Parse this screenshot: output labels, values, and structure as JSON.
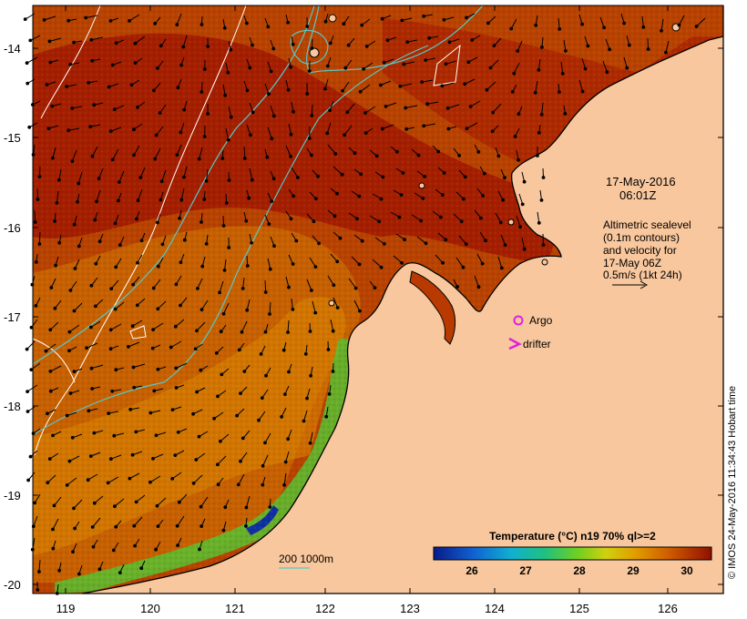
{
  "map": {
    "lat_ticks": [
      "-14",
      "-15",
      "-16",
      "-17",
      "-18",
      "-19",
      "-20"
    ],
    "lon_ticks": [
      "119",
      "120",
      "121",
      "122",
      "123",
      "124",
      "125",
      "126"
    ],
    "lon_range": [
      118.6,
      126.7
    ],
    "lat_range": [
      -13.6,
      -20.1
    ],
    "colors": {
      "land": "#f8c79d",
      "sst_warm": "#b83a00",
      "sst_hot": "#a01800",
      "sst_mid": "#d07800",
      "sst_cool": "#40c040",
      "contour": "#58c8c8",
      "isobath": "#ffffff",
      "coast": "#000000",
      "argo": "#e020e0"
    }
  },
  "annotation": {
    "date": "17-May-2016",
    "time": "06:01Z",
    "legend_lines": [
      "Altimetric sealevel",
      "(0.1m contours)",
      "and velocity for",
      "17-May 06Z",
      "0.5m/s (1kt 24h)"
    ],
    "argo_label": "Argo",
    "drifter_label": "drifter",
    "isobath_label": "200  1000m"
  },
  "colorbar": {
    "title": "Temperature (°C) n19 70% ql>=2",
    "ticks": [
      "26",
      "27",
      "28",
      "29",
      "30"
    ],
    "range": [
      25.3,
      30.6
    ]
  },
  "credit": "© IMOS 24-May-2016 11:34:43 Hobart time"
}
